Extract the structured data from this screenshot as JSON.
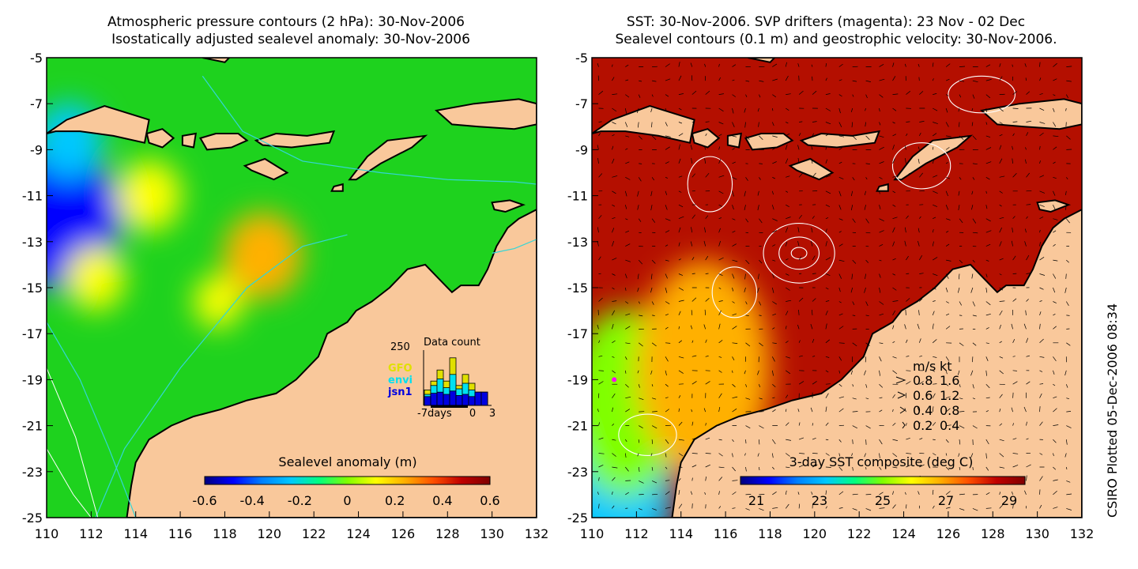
{
  "colors": {
    "land": "#f9c89b",
    "coast": "#000000",
    "sla_bg": "#1ed21e",
    "sst_bg": "#b40f00",
    "pressure_contour": "#33d6d6",
    "sealevel_contour": "#ffffff",
    "drifter": "#ff00ff"
  },
  "colormap": [
    "#00007f",
    "#0000ff",
    "#0080ff",
    "#00c8ff",
    "#00ff80",
    "#80ff00",
    "#ffff00",
    "#ffb000",
    "#ff5000",
    "#c00000",
    "#7f0000"
  ],
  "stamp": "CSIRO Plotted 05-Dec-2006 08:34",
  "chart_data": [
    {
      "type": "heatmap",
      "title_lines": [
        "Atmospheric pressure contours (2 hPa): 30-Nov-2006",
        "Isostatically adjusted sealevel anomaly: 30-Nov-2006"
      ],
      "xlim": [
        110,
        132
      ],
      "ylim": [
        -25,
        -5
      ],
      "xticks": [
        "110",
        "112",
        "114",
        "116",
        "118",
        "120",
        "122",
        "124",
        "126",
        "128",
        "130",
        "132"
      ],
      "yticks": [
        "-5",
        "-7",
        "-9",
        "-11",
        "-13",
        "-15",
        "-17",
        "-19",
        "-21",
        "-23",
        "-25"
      ],
      "grid": false,
      "colorbar": {
        "title": "Sealevel anomaly (m)",
        "range": [
          -0.6,
          0.6
        ],
        "tick_labels": [
          "-0.6",
          "-0.4",
          "-0.2",
          "0",
          "0.2",
          "0.4",
          "0.6"
        ]
      },
      "features": [
        {
          "name": "low anomaly",
          "lon": 110.5,
          "lat": -12.0,
          "value": -0.5
        },
        {
          "name": "low anomaly",
          "lon": 111.0,
          "lat": -8.6,
          "value": -0.2
        },
        {
          "name": "high anomaly",
          "lon": 119.7,
          "lat": -13.6,
          "value": 0.25
        },
        {
          "name": "high anomaly",
          "lon": 114.6,
          "lat": -11.0,
          "value": 0.18
        },
        {
          "name": "high anomaly",
          "lon": 112.2,
          "lat": -14.6,
          "value": 0.15
        },
        {
          "name": "high anomaly",
          "lon": 117.7,
          "lat": -15.6,
          "value": 0.1
        }
      ],
      "inset": {
        "title": "Data count",
        "max_label": "250",
        "x_labels": [
          "-7days",
          "0",
          "3"
        ],
        "legend": [
          {
            "label": "GFO",
            "color": "#e0e000"
          },
          {
            "label": "envi",
            "color": "#00e0f0"
          },
          {
            "label": "jsn1",
            "color": "#0000e0"
          }
        ],
        "bars": [
          {
            "day": -7,
            "jsn1": 40,
            "envi": 50,
            "GFO": 70
          },
          {
            "day": -6,
            "jsn1": 55,
            "envi": 90,
            "GFO": 110
          },
          {
            "day": -5,
            "jsn1": 60,
            "envi": 120,
            "GFO": 160
          },
          {
            "day": -4,
            "jsn1": 50,
            "envi": 80,
            "GFO": 110
          },
          {
            "day": -3,
            "jsn1": 65,
            "envi": 140,
            "GFO": 215
          },
          {
            "day": -2,
            "jsn1": 45,
            "envi": 75,
            "GFO": 90
          },
          {
            "day": -1,
            "jsn1": 50,
            "envi": 100,
            "GFO": 140
          },
          {
            "day": 0,
            "jsn1": 40,
            "envi": 70,
            "GFO": 100
          },
          {
            "day": 1,
            "jsn1": 60,
            "envi": 60,
            "GFO": 60
          },
          {
            "day": 2,
            "jsn1": 60,
            "envi": 60,
            "GFO": 60
          }
        ]
      }
    },
    {
      "type": "heatmap",
      "title_lines": [
        "SST: 30-Nov-2006. SVP drifters (magenta): 23 Nov - 02 Dec",
        "Sealevel contours (0.1 m) and geostrophic velocity: 30-Nov-2006."
      ],
      "xlim": [
        110,
        132
      ],
      "ylim": [
        -25,
        -5
      ],
      "xticks": [
        "110",
        "112",
        "114",
        "116",
        "118",
        "120",
        "122",
        "124",
        "126",
        "128",
        "130",
        "132"
      ],
      "yticks": [
        "-5",
        "-7",
        "-9",
        "-11",
        "-13",
        "-15",
        "-17",
        "-19",
        "-21",
        "-23",
        "-25"
      ],
      "grid": false,
      "colorbar": {
        "title": "3-day SST composite (deg C)",
        "range": [
          20.5,
          29.5
        ],
        "tick_labels": [
          "21",
          "23",
          "25",
          "27",
          "29"
        ]
      },
      "features": [
        {
          "name": "cool water",
          "lon": 111.0,
          "lat": -23.5,
          "value": 23.0
        },
        {
          "name": "cool water",
          "lon": 111.5,
          "lat": -20.0,
          "value": 25.0
        },
        {
          "name": "warm front",
          "lon": 115.0,
          "lat": -18.5,
          "value": 27.0
        },
        {
          "name": "warm pool",
          "lon": 124.0,
          "lat": -13.0,
          "value": 29.3
        }
      ],
      "velocity_key": {
        "headers": [
          "m/s",
          "kt"
        ],
        "rows": [
          [
            "0.8",
            "1.6"
          ],
          [
            "0.6",
            "1.2"
          ],
          [
            "0.4",
            "0.8"
          ],
          [
            "0.2",
            "0.4"
          ]
        ]
      }
    }
  ]
}
